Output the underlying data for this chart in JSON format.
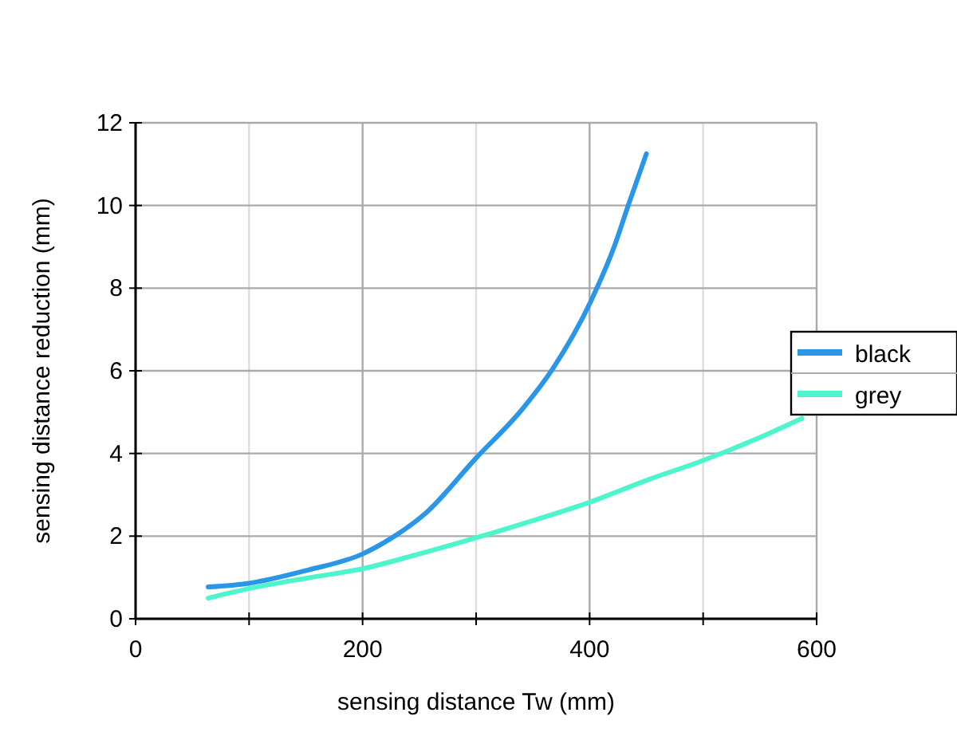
{
  "chart_data": {
    "type": "line",
    "xlabel": "sensing distance Tw (mm)",
    "ylabel": "sensing distance reduction (mm)",
    "xlim": [
      0,
      600
    ],
    "xticks": [
      0,
      {
        "value": 100,
        "label": null
      },
      200,
      {
        "value": 300,
        "label": null
      },
      400,
      {
        "value": 500,
        "label": null
      },
      600
    ],
    "ylim": [
      0,
      12
    ],
    "yticks": [
      0,
      2,
      4,
      6,
      8,
      10,
      12
    ],
    "grid": true,
    "legend": "right",
    "marker": "none",
    "line_style": "solid",
    "series": [
      {
        "name": "black",
        "color": "#2a96e8",
        "x": [
          64,
          100,
          152,
          200,
          227,
          255,
          300,
          340,
          368,
          401,
          422,
          434,
          450
        ],
        "values": [
          0.77,
          0.86,
          1.18,
          1.57,
          1.98,
          2.54,
          3.89,
          5.05,
          6.07,
          7.68,
          9.03,
          10.0,
          11.25
        ]
      },
      {
        "name": "grey",
        "color": "#4df5cc",
        "x": [
          64,
          100,
          152,
          200,
          246,
          300,
          354,
          401,
          452,
          499,
          546,
          587
        ],
        "values": [
          0.5,
          0.73,
          0.99,
          1.21,
          1.54,
          1.96,
          2.41,
          2.83,
          3.37,
          3.82,
          4.34,
          4.85
        ]
      }
    ]
  }
}
